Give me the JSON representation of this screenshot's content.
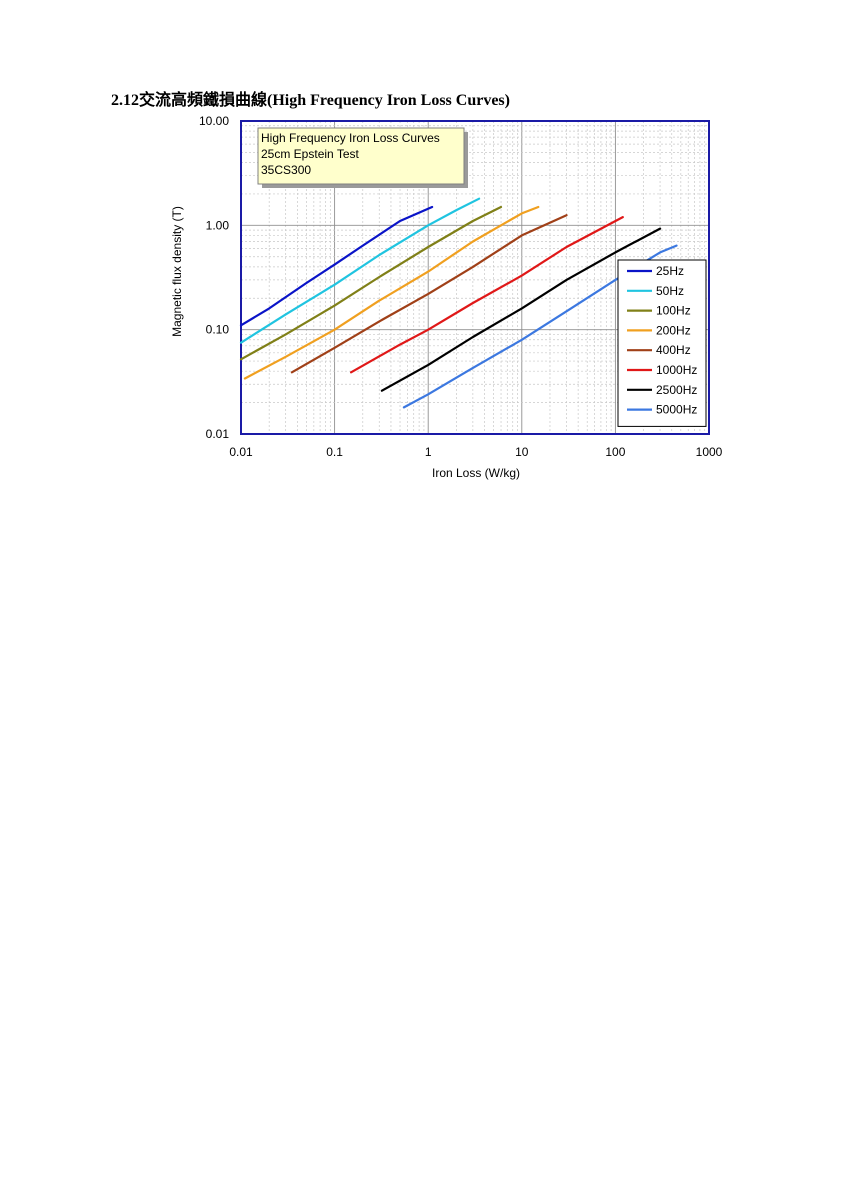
{
  "heading": "2.12交流高頻鐵損曲線(High Frequency Iron Loss Curves)",
  "chart_data": {
    "type": "line",
    "annotation": [
      "High Frequency Iron Loss Curves",
      "25cm Epstein Test",
      "35CS300"
    ],
    "xlabel": "Iron Loss (W/kg)",
    "ylabel": "Magnetic flux density (T)",
    "x_scale": "log",
    "y_scale": "log",
    "xlim": [
      0.01,
      1000
    ],
    "ylim": [
      0.01,
      10
    ],
    "x_ticks": [
      "0.01",
      "0.1",
      "1",
      "10",
      "100",
      "1000"
    ],
    "y_ticks": [
      "10.00",
      "1.00",
      "0.10",
      "0.01"
    ],
    "grid": true,
    "legend_position": "right",
    "colors": {
      "axis": "#1a1aa6",
      "annotation_bg": "#ffffcc"
    },
    "series": [
      {
        "name": "25Hz",
        "color": "#0a14c8",
        "points": [
          [
            0.01,
            0.11
          ],
          [
            0.02,
            0.16
          ],
          [
            0.05,
            0.28
          ],
          [
            0.1,
            0.42
          ],
          [
            0.2,
            0.64
          ],
          [
            0.5,
            1.1
          ],
          [
            1.1,
            1.5
          ]
        ]
      },
      {
        "name": "50Hz",
        "color": "#20c4e0",
        "points": [
          [
            0.01,
            0.075
          ],
          [
            0.03,
            0.14
          ],
          [
            0.1,
            0.27
          ],
          [
            0.3,
            0.52
          ],
          [
            1.0,
            1.0
          ],
          [
            2.0,
            1.4
          ],
          [
            3.5,
            1.8
          ]
        ]
      },
      {
        "name": "100Hz",
        "color": "#808018",
        "points": [
          [
            0.01,
            0.052
          ],
          [
            0.03,
            0.09
          ],
          [
            0.1,
            0.17
          ],
          [
            0.3,
            0.32
          ],
          [
            1.0,
            0.62
          ],
          [
            3.0,
            1.1
          ],
          [
            6.0,
            1.5
          ]
        ]
      },
      {
        "name": "200Hz",
        "color": "#f0a020",
        "points": [
          [
            0.011,
            0.034
          ],
          [
            0.03,
            0.055
          ],
          [
            0.1,
            0.1
          ],
          [
            0.3,
            0.19
          ],
          [
            1.0,
            0.36
          ],
          [
            3.0,
            0.7
          ],
          [
            10.0,
            1.3
          ],
          [
            15.0,
            1.5
          ]
        ]
      },
      {
        "name": "400Hz",
        "color": "#a04018",
        "points": [
          [
            0.035,
            0.039
          ],
          [
            0.1,
            0.067
          ],
          [
            0.3,
            0.12
          ],
          [
            1.0,
            0.22
          ],
          [
            3.0,
            0.4
          ],
          [
            10.0,
            0.8
          ],
          [
            30.0,
            1.25
          ]
        ]
      },
      {
        "name": "1000Hz",
        "color": "#e01818",
        "points": [
          [
            0.15,
            0.039
          ],
          [
            0.5,
            0.072
          ],
          [
            1.0,
            0.1
          ],
          [
            3.0,
            0.18
          ],
          [
            10.0,
            0.33
          ],
          [
            30.0,
            0.62
          ],
          [
            120.0,
            1.2
          ]
        ]
      },
      {
        "name": "2500Hz",
        "color": "#000000",
        "points": [
          [
            0.32,
            0.026
          ],
          [
            1.0,
            0.046
          ],
          [
            3.0,
            0.085
          ],
          [
            10.0,
            0.16
          ],
          [
            30.0,
            0.3
          ],
          [
            100.0,
            0.55
          ],
          [
            300.0,
            0.93
          ]
        ]
      },
      {
        "name": "5000Hz",
        "color": "#3c78e0",
        "points": [
          [
            0.55,
            0.018
          ],
          [
            1.0,
            0.024
          ],
          [
            3.0,
            0.043
          ],
          [
            10.0,
            0.08
          ],
          [
            30.0,
            0.15
          ],
          [
            100.0,
            0.3
          ],
          [
            300.0,
            0.55
          ],
          [
            450.0,
            0.64
          ]
        ]
      }
    ]
  }
}
